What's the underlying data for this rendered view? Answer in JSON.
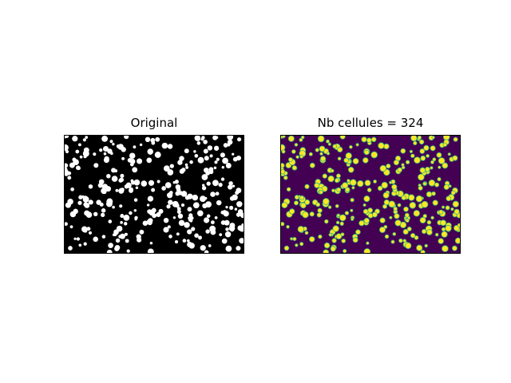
{
  "figure": {
    "left_panel": {
      "title": "Original",
      "background": "#000000",
      "blob_color": "#ffffff"
    },
    "right_panel": {
      "title": "Nb cellules = 324",
      "cell_count": 324,
      "background": "#440154",
      "blob_fill": "#fde725",
      "blob_edge": "#35b779",
      "colormap": "viridis"
    }
  }
}
